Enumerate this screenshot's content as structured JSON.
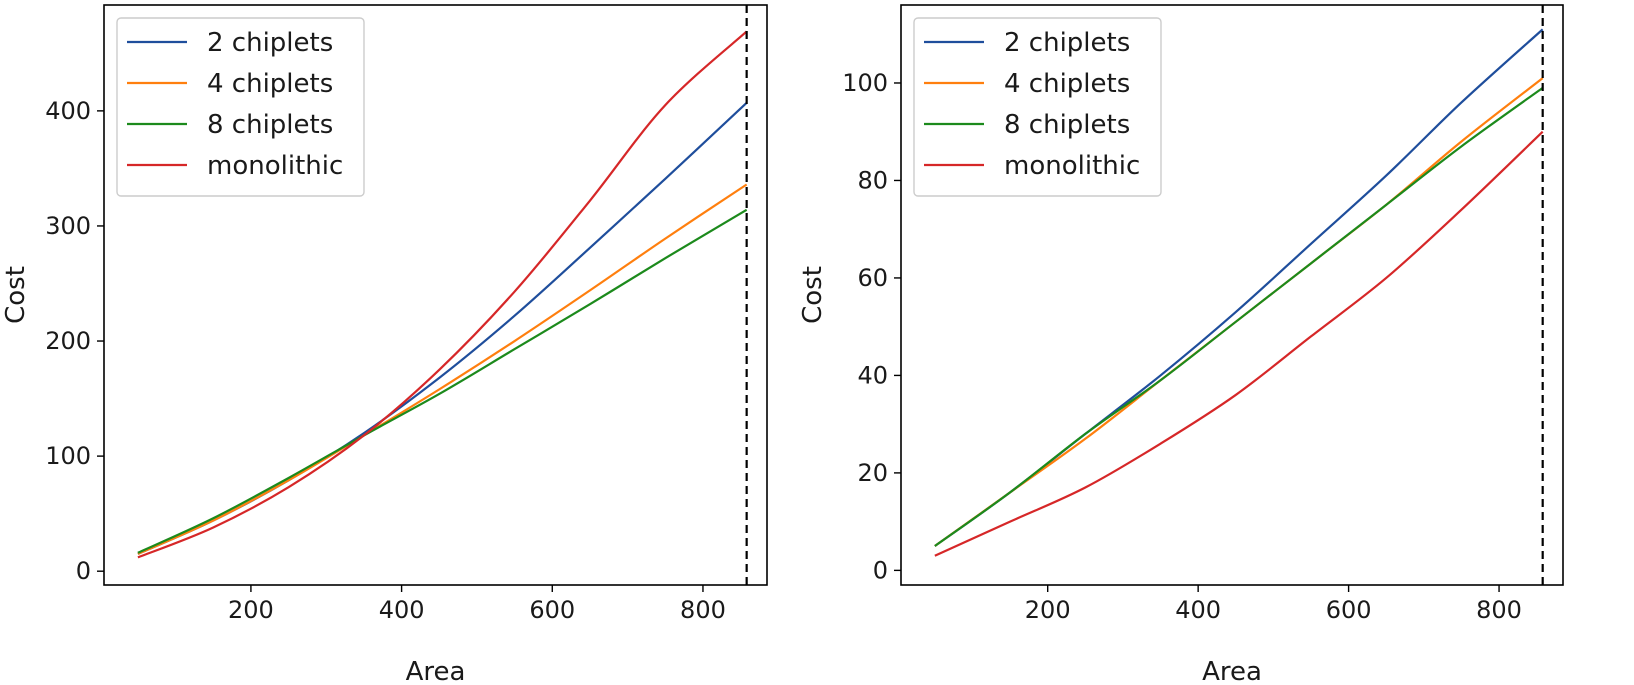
{
  "chart_data": [
    {
      "type": "line",
      "title": "",
      "xlabel": "Area",
      "ylabel": "Cost",
      "xlim": [
        5,
        885
      ],
      "ylim": [
        -12,
        492
      ],
      "xticks": [
        200,
        400,
        600,
        800
      ],
      "yticks": [
        0,
        100,
        200,
        300,
        400
      ],
      "vline": {
        "x": 858,
        "style": "dashed",
        "color": "#000000"
      },
      "legend_position": "top-left",
      "grid": false,
      "x": [
        50,
        150,
        250,
        350,
        450,
        550,
        650,
        750,
        858
      ],
      "series": [
        {
          "name": "2 chiplets",
          "color": "#1f4e9c",
          "values": [
            15,
            44,
            79,
            120,
            168,
            222,
            281,
            341,
            407
          ]
        },
        {
          "name": "4 chiplets",
          "color": "#ff7f0e",
          "values": [
            15,
            44,
            79,
            118,
            158,
            200,
            244,
            289,
            336
          ]
        },
        {
          "name": "8 chiplets",
          "color": "#1c8a1c",
          "values": [
            16,
            46,
            81,
            118,
            154,
            193,
            232,
            272,
            314
          ]
        },
        {
          "name": "monolithic",
          "color": "#d62728",
          "values": [
            12,
            38,
            73,
            118,
            175,
            243,
            322,
            405,
            469
          ]
        }
      ]
    },
    {
      "type": "line",
      "title": "",
      "xlabel": "Area",
      "ylabel": "Cost",
      "xlim": [
        5,
        885
      ],
      "ylim": [
        -3,
        116
      ],
      "xticks": [
        200,
        400,
        600,
        800
      ],
      "yticks": [
        0,
        20,
        40,
        60,
        80,
        100
      ],
      "vline": {
        "x": 858,
        "style": "dashed",
        "color": "#000000"
      },
      "legend_position": "top-left",
      "grid": false,
      "x": [
        50,
        150,
        250,
        350,
        450,
        550,
        650,
        750,
        858
      ],
      "series": [
        {
          "name": "2 chiplets",
          "color": "#1f4e9c",
          "values": [
            5,
            16,
            28,
            40,
            53,
            67,
            81,
            96,
            111
          ]
        },
        {
          "name": "4 chiplets",
          "color": "#ff7f0e",
          "values": [
            5,
            16,
            27,
            39,
            51,
            63,
            75,
            88,
            101
          ]
        },
        {
          "name": "8 chiplets",
          "color": "#1c8a1c",
          "values": [
            5,
            16,
            28,
            39,
            51,
            63,
            75,
            87,
            99
          ]
        },
        {
          "name": "monolithic",
          "color": "#d62728",
          "values": [
            3,
            10,
            17,
            26,
            36,
            48,
            60,
            74,
            90
          ]
        }
      ]
    }
  ]
}
